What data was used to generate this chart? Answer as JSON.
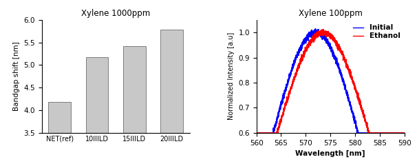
{
  "bar_categories": [
    "NET(ref)",
    "10IIILD",
    "15IIILD",
    "20IIILD"
  ],
  "bar_values": [
    4.18,
    5.17,
    5.42,
    5.78
  ],
  "bar_color": "#c8c8c8",
  "bar_title": "Xylene 1000ppm",
  "bar_ylabel": "Bandgap shift [nm]",
  "bar_ylim": [
    3.5,
    6.0
  ],
  "bar_yticks": [
    3.5,
    4.0,
    4.5,
    5.0,
    5.5,
    6.0
  ],
  "line_title": "Xylene 100ppm",
  "line_xlabel": "Wavelength [nm]",
  "line_ylabel": "Normalized Intensity [a.u]",
  "line_xlim": [
    560,
    590
  ],
  "line_ylim": [
    0.6,
    1.05
  ],
  "line_yticks": [
    0.6,
    0.7,
    0.8,
    0.9,
    1.0
  ],
  "line_xticks": [
    560,
    565,
    570,
    575,
    580,
    585,
    590
  ],
  "initial_peak": 572.0,
  "initial_sigma": 8.5,
  "initial_color": "#0000ff",
  "ethanol_peak": 573.5,
  "ethanol_sigma": 9.2,
  "ethanol_color": "#ff0000",
  "noise_level": 0.006,
  "noise_seed": 42,
  "legend_labels": [
    "Initial",
    "Ethanol"
  ]
}
